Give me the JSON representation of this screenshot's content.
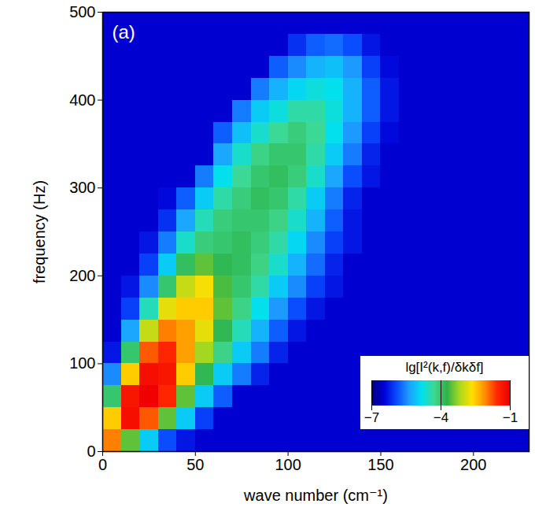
{
  "chart_data": {
    "type": "heatmap",
    "panel": "(a)",
    "xlabel": "wave number (cm⁻¹)",
    "ylabel": "frequency (Hz)",
    "xlim": [
      0,
      230
    ],
    "xticks": [
      0,
      50,
      100,
      150,
      200
    ],
    "ylim": [
      0,
      500
    ],
    "yticks": [
      0,
      100,
      200,
      300,
      400,
      500
    ],
    "x_bins": [
      0,
      10,
      20,
      30,
      40,
      50,
      60,
      70,
      80,
      90,
      100,
      110,
      120,
      130,
      140,
      150,
      160,
      170,
      180,
      190,
      200,
      210,
      220,
      230
    ],
    "y_bins": [
      0,
      25,
      50,
      75,
      100,
      125,
      150,
      175,
      200,
      225,
      250,
      275,
      300,
      325,
      350,
      375,
      400,
      425,
      450,
      475,
      500
    ],
    "cells": [
      [
        -2,
        -3.5,
        -5,
        -5.9,
        -6.3,
        -6.5,
        -6.5,
        -6.5,
        -6.5,
        -6.5,
        -6.5,
        -6.5,
        -6.5,
        -6.5,
        -6.5,
        -6.5,
        -6.5,
        -6.5,
        -6.5,
        -6.5,
        -6.5,
        -6.5,
        -6.5
      ],
      [
        -2.5,
        -1.2,
        -1.8,
        -3.5,
        -5,
        -6,
        -6.5,
        -6.5,
        -6.5,
        -6.5,
        -6.5,
        -6.5,
        -6.5,
        -6.5,
        -6.5,
        -6.5,
        -6.5,
        -6.5,
        -6.5,
        -6.5,
        -6.5,
        -6.5,
        -6.5
      ],
      [
        -4,
        -1.3,
        -1,
        -1.5,
        -3.5,
        -5,
        -5.8,
        -6.5,
        -6.5,
        -6.5,
        -6.5,
        -6.5,
        -6.5,
        -6.5,
        -6.5,
        -6.5,
        -6.5,
        -6.5,
        -6.5,
        -6.5,
        -6.5,
        -6.5,
        -6.5
      ],
      [
        -5.5,
        -2.5,
        -1.2,
        -1.3,
        -2.5,
        -3.8,
        -5,
        -5.6,
        -6.2,
        -6.5,
        -6.5,
        -6.5,
        -6.5,
        -6.5,
        -6.5,
        -6.5,
        -6.5,
        -6.5,
        -6.5,
        -6.5,
        -6.5,
        -6.5,
        -6.5
      ],
      [
        -6.3,
        -4,
        -1.8,
        -1.5,
        -2.2,
        -3.2,
        -4.2,
        -5,
        -5.6,
        -6.2,
        -6.5,
        -6.5,
        -6.5,
        -6.5,
        -6.5,
        -6.5,
        -6.5,
        -6.5,
        -6.5,
        -6.5,
        -6.5,
        -6.5,
        -6.5
      ],
      [
        -6.5,
        -5.3,
        -3,
        -2,
        -2.2,
        -2.8,
        -3.8,
        -4.5,
        -5.2,
        -5.8,
        -6.3,
        -6.5,
        -6.5,
        -6.5,
        -6.5,
        -6.5,
        -6.5,
        -6.5,
        -6.5,
        -6.5,
        -6.5,
        -6.5,
        -6.5
      ],
      [
        -6.5,
        -6,
        -4.5,
        -2.8,
        -2.5,
        -2.5,
        -3.5,
        -4.2,
        -4.8,
        -5.4,
        -5.9,
        -6.3,
        -6.5,
        -6.5,
        -6.5,
        -6.5,
        -6.5,
        -6.5,
        -6.5,
        -6.5,
        -6.5,
        -6.5,
        -6.5
      ],
      [
        -6.5,
        -6.3,
        -5.5,
        -4,
        -3,
        -2.7,
        -3.6,
        -4,
        -4.4,
        -5,
        -5.5,
        -6,
        -6.3,
        -6.5,
        -6.5,
        -6.5,
        -6.5,
        -6.5,
        -6.5,
        -6.5,
        -6.5,
        -6.5,
        -6.5
      ],
      [
        -6.5,
        -6.5,
        -6,
        -5,
        -3.9,
        -3.5,
        -3.8,
        -3.9,
        -4.2,
        -4.6,
        -5.2,
        -5.7,
        -6.2,
        -6.5,
        -6.5,
        -6.5,
        -6.5,
        -6.5,
        -6.5,
        -6.5,
        -6.5,
        -6.5,
        -6.5
      ],
      [
        -6.5,
        -6.5,
        -6.3,
        -5.6,
        -4.6,
        -4.1,
        -4,
        -3.9,
        -4.1,
        -4.4,
        -4.9,
        -5.5,
        -6,
        -6.3,
        -6.5,
        -6.5,
        -6.5,
        -6.5,
        -6.5,
        -6.5,
        -6.5,
        -6.5,
        -6.5
      ],
      [
        -6.5,
        -6.5,
        -6.5,
        -6.1,
        -5.3,
        -4.5,
        -4.1,
        -4,
        -4,
        -4.2,
        -4.6,
        -5.2,
        -5.8,
        -6.3,
        -6.5,
        -6.5,
        -6.5,
        -6.5,
        -6.5,
        -6.5,
        -6.5,
        -6.5,
        -6.5
      ],
      [
        -6.5,
        -6.5,
        -6.5,
        -6.4,
        -5.8,
        -5,
        -4.4,
        -4.1,
        -3.9,
        -4,
        -4.4,
        -5,
        -5.6,
        -6.2,
        -6.5,
        -6.5,
        -6.5,
        -6.5,
        -6.5,
        -6.5,
        -6.5,
        -6.5,
        -6.5
      ],
      [
        -6.5,
        -6.5,
        -6.5,
        -6.5,
        -6.5,
        -5.6,
        -4.8,
        -4.3,
        -4,
        -3.9,
        -4.1,
        -4.6,
        -5.3,
        -5.9,
        -6.3,
        -6.5,
        -6.5,
        -6.5,
        -6.5,
        -6.5,
        -6.5,
        -6.5,
        -6.5
      ],
      [
        -6.5,
        -6.5,
        -6.5,
        -6.5,
        -6.5,
        -6.5,
        -5.3,
        -4.6,
        -4.2,
        -4,
        -4,
        -4.4,
        -5,
        -5.6,
        -6.2,
        -6.5,
        -6.5,
        -6.5,
        -6.5,
        -6.5,
        -6.5,
        -6.5,
        -6.5
      ],
      [
        -6.5,
        -6.5,
        -6.5,
        -6.5,
        -6.5,
        -6.5,
        -5.8,
        -5.1,
        -4.6,
        -4.3,
        -4.1,
        -4.3,
        -4.8,
        -5.4,
        -6,
        -6.4,
        -6.5,
        -6.5,
        -6.5,
        -6.5,
        -6.5,
        -6.5,
        -6.5
      ],
      [
        -6.5,
        -6.5,
        -6.5,
        -6.5,
        -6.5,
        -6.5,
        -6.5,
        -5.6,
        -5,
        -4.7,
        -4.4,
        -4.4,
        -4.7,
        -5.2,
        -5.8,
        -6.3,
        -6.5,
        -6.5,
        -6.5,
        -6.5,
        -6.5,
        -6.5,
        -6.5
      ],
      [
        -6.5,
        -6.5,
        -6.5,
        -6.5,
        -6.5,
        -6.5,
        -6.5,
        -6.5,
        -5.6,
        -5.2,
        -4.9,
        -4.7,
        -4.8,
        -5.2,
        -5.8,
        -6.3,
        -6.5,
        -6.5,
        -6.5,
        -6.5,
        -6.5,
        -6.5,
        -6.5
      ],
      [
        -6.5,
        -6.5,
        -6.5,
        -6.5,
        -6.5,
        -6.5,
        -6.5,
        -6.5,
        -6.5,
        -5.8,
        -5.5,
        -5.2,
        -5.1,
        -5.4,
        -6,
        -6.4,
        -6.5,
        -6.5,
        -6.5,
        -6.5,
        -6.5,
        -6.5,
        -6.5
      ],
      [
        -6.5,
        -6.5,
        -6.5,
        -6.5,
        -6.5,
        -6.5,
        -6.5,
        -6.5,
        -6.5,
        -6.5,
        -6.1,
        -5.8,
        -5.7,
        -5.9,
        -6.3,
        -6.5,
        -6.5,
        -6.5,
        -6.5,
        -6.5,
        -6.5,
        -6.5,
        -6.5
      ],
      [
        -6.5,
        -6.5,
        -6.5,
        -6.5,
        -6.5,
        -6.5,
        -6.5,
        -6.5,
        -6.5,
        -6.5,
        -6.5,
        -6.5,
        -6.5,
        -6.5,
        -6.5,
        -6.5,
        -6.5,
        -6.5,
        -6.5,
        -6.5,
        -6.5,
        -6.5,
        -6.5
      ]
    ],
    "colorbar": {
      "label": "lg[I²(k,f)/δkδf]",
      "lim": [
        -7,
        -1
      ],
      "ticks": [
        -7,
        -4,
        -1
      ]
    },
    "legend": "lower right"
  }
}
